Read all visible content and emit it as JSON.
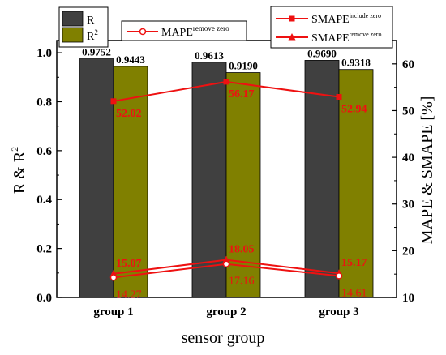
{
  "chart_data": {
    "type": "bar",
    "title": "",
    "xlabel": "sensor group",
    "ylabel_left": "R & R²",
    "ylabel_right": "MAPE & SMAPE [%]",
    "categories": [
      "group 1",
      "group 2",
      "group 3"
    ],
    "ylim_left": [
      0,
      1.05
    ],
    "ylim_right": [
      10,
      65
    ],
    "yticks_left": [
      "0.0",
      "0.2",
      "0.4",
      "0.6",
      "0.8",
      "1.0"
    ],
    "yticks_right": [
      "10",
      "20",
      "30",
      "40",
      "50",
      "60"
    ],
    "bar_series": [
      {
        "name": "R",
        "values": [
          0.9752,
          0.9613,
          0.969
        ],
        "labels": [
          "0.9752",
          "0.9613",
          "0.9690"
        ],
        "color": "#404040"
      },
      {
        "name": "R²",
        "values": [
          0.9443,
          0.919,
          0.9318
        ],
        "labels": [
          "0.9443",
          "0.9190",
          "0.9318"
        ],
        "color": "#808000"
      }
    ],
    "line_series": [
      {
        "name": "SMAPE include zero",
        "values": [
          52.02,
          56.17,
          52.94
        ],
        "labels": [
          "52.02",
          "56.17",
          "52.94"
        ],
        "marker": "square",
        "color": "#ee1111"
      },
      {
        "name": "SMAPE remove zero",
        "values": [
          15.07,
          18.05,
          15.17
        ],
        "labels": [
          "15.07",
          "18.05",
          "15.17"
        ],
        "marker": "triangle",
        "color": "#ee1111"
      },
      {
        "name": "MAPE remove zero",
        "values": [
          14.27,
          17.16,
          14.61
        ],
        "labels": [
          "14.27",
          "17.16",
          "14.61"
        ],
        "marker": "circle",
        "color": "#ee1111"
      }
    ],
    "legends": {
      "bars": [
        {
          "base": "R",
          "sup": ""
        },
        {
          "base": "R",
          "sup": "2"
        }
      ],
      "mape": {
        "base": "MAPE",
        "sup": "remove zero"
      },
      "smape": [
        {
          "base": "SMAPE",
          "sup": "include zero"
        },
        {
          "base": "SMAPE",
          "sup": "remove zero"
        }
      ]
    },
    "axis_labels": {
      "ylabel_left_base": "R & R",
      "ylabel_left_sup": "2"
    },
    "grid": false,
    "legend_placement": "top"
  }
}
